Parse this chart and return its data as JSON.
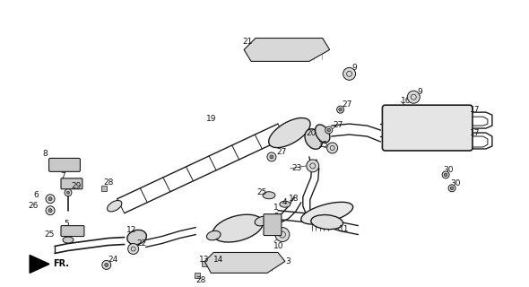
{
  "bg_color": "#ffffff",
  "line_color": "#1a1a1a",
  "text_color": "#111111",
  "fig_width": 5.9,
  "fig_height": 3.2,
  "dpi": 100
}
